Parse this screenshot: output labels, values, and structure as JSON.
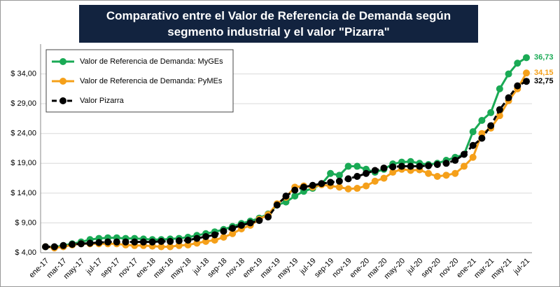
{
  "chart_data": {
    "type": "line",
    "title": "Comparativo entre el Valor de Referencia de Demanda según segmento industrial y el valor \"Pizarra\"",
    "categories": [
      "ene-17",
      null,
      "mar-17",
      null,
      "may-17",
      null,
      "jul-17",
      null,
      "sep-17",
      null,
      "nov-17",
      null,
      "ene-18",
      null,
      "mar-18",
      null,
      "may-18",
      null,
      "jul-18",
      null,
      "sep-18",
      null,
      "nov-18",
      null,
      "ene-19",
      null,
      "mar-19",
      null,
      "may-19",
      null,
      "jul-19",
      null,
      "sep-19",
      null,
      "nov-19",
      null,
      "ene-20",
      null,
      "mar-20",
      null,
      "may-20",
      null,
      "jul-20",
      null,
      "sep-20",
      null,
      "nov-20",
      null,
      "ene-21",
      null,
      "mar-21",
      null,
      "may-21",
      null,
      "jul-21"
    ],
    "series": [
      {
        "name": "Valor de Referencia de Demanda: MyGEs",
        "color": "#1aaa55",
        "dashed": false,
        "values": [
          5.0,
          4.9,
          5.2,
          5.5,
          5.8,
          6.2,
          6.4,
          6.5,
          6.5,
          6.4,
          6.4,
          6.3,
          6.2,
          6.2,
          6.3,
          6.4,
          6.6,
          6.9,
          7.2,
          7.5,
          7.9,
          8.4,
          8.9,
          9.3,
          9.8,
          10.5,
          12.0,
          12.5,
          13.5,
          14.3,
          14.8,
          15.5,
          17.3,
          17.0,
          18.5,
          18.5,
          18.0,
          17.5,
          18.0,
          18.9,
          19.2,
          19.3,
          19.0,
          18.8,
          19.0,
          19.5,
          20.0,
          20.5,
          24.3,
          26.2,
          27.5,
          31.5,
          34.0,
          35.8,
          36.73
        ],
        "value_labels": [
          null,
          null,
          null,
          null,
          null,
          null,
          null,
          null,
          null,
          null,
          null,
          null,
          null,
          null,
          null,
          null,
          null,
          null,
          null,
          null,
          null,
          null,
          null,
          null,
          null,
          null,
          null,
          null,
          null,
          null,
          null,
          null,
          null,
          null,
          null,
          null,
          null,
          null,
          null,
          null,
          null,
          null,
          null,
          null,
          null,
          null,
          null,
          null,
          null,
          null,
          null,
          null,
          null,
          null,
          "36,73"
        ]
      },
      {
        "name": "Valor de Referencia de Demanda: PyMEs",
        "color": "#f5a01a",
        "dashed": false,
        "values": [
          5.0,
          4.8,
          5.0,
          5.3,
          5.5,
          5.5,
          5.5,
          5.5,
          5.5,
          5.3,
          5.2,
          5.2,
          5.1,
          5.0,
          5.0,
          5.2,
          5.3,
          5.6,
          5.9,
          6.1,
          6.6,
          7.2,
          8.0,
          8.6,
          9.6,
          10.4,
          12.2,
          13.3,
          15.0,
          15.2,
          15.0,
          15.4,
          15.2,
          15.0,
          14.7,
          14.8,
          15.2,
          16.0,
          16.5,
          17.5,
          18.0,
          17.8,
          17.9,
          17.3,
          16.8,
          17.0,
          17.3,
          18.5,
          20.0,
          24.0,
          24.9,
          27.0,
          29.5,
          31.5,
          34.15
        ],
        "value_labels": [
          null,
          null,
          null,
          null,
          null,
          null,
          null,
          null,
          null,
          null,
          null,
          null,
          null,
          null,
          null,
          null,
          null,
          null,
          null,
          null,
          null,
          null,
          null,
          null,
          null,
          null,
          null,
          null,
          null,
          null,
          null,
          null,
          null,
          null,
          null,
          null,
          null,
          null,
          null,
          null,
          null,
          null,
          null,
          null,
          null,
          null,
          null,
          null,
          null,
          null,
          null,
          null,
          null,
          null,
          "34,15"
        ]
      },
      {
        "name": "Valor Pizarra",
        "color": "#000000",
        "dashed": true,
        "values": [
          5.0,
          5.0,
          5.2,
          5.4,
          5.5,
          5.6,
          5.7,
          5.8,
          5.8,
          5.8,
          5.8,
          5.8,
          5.8,
          5.9,
          5.9,
          6.0,
          6.1,
          6.4,
          6.7,
          7.0,
          7.6,
          8.1,
          8.6,
          9.0,
          9.4,
          10.0,
          12.0,
          13.5,
          14.5,
          15.0,
          15.3,
          15.6,
          15.8,
          16.0,
          16.4,
          16.8,
          17.3,
          17.8,
          18.2,
          18.4,
          18.5,
          18.5,
          18.5,
          18.6,
          18.8,
          19.0,
          19.5,
          20.5,
          22.0,
          23.2,
          25.3,
          28.0,
          30.0,
          32.0,
          32.75
        ],
        "value_labels": [
          null,
          null,
          null,
          null,
          null,
          null,
          null,
          null,
          null,
          null,
          null,
          null,
          null,
          null,
          null,
          null,
          null,
          null,
          null,
          null,
          null,
          null,
          null,
          null,
          null,
          null,
          null,
          null,
          null,
          null,
          null,
          null,
          null,
          null,
          null,
          null,
          null,
          null,
          null,
          null,
          null,
          null,
          null,
          null,
          null,
          null,
          null,
          null,
          null,
          null,
          null,
          null,
          null,
          null,
          "32,75"
        ]
      }
    ],
    "ylim": [
      4,
      39
    ],
    "yticks": [
      {
        "value": 4,
        "label": "$ 4,00"
      },
      {
        "value": 9,
        "label": "$ 9,00"
      },
      {
        "value": 14,
        "label": "$ 14,00"
      },
      {
        "value": 19,
        "label": "$ 19,00"
      },
      {
        "value": 24,
        "label": "$ 24,00"
      },
      {
        "value": 29,
        "label": "$ 29,00"
      },
      {
        "value": 34,
        "label": "$ 34,00"
      }
    ],
    "grid": true,
    "legend": "upper left"
  }
}
